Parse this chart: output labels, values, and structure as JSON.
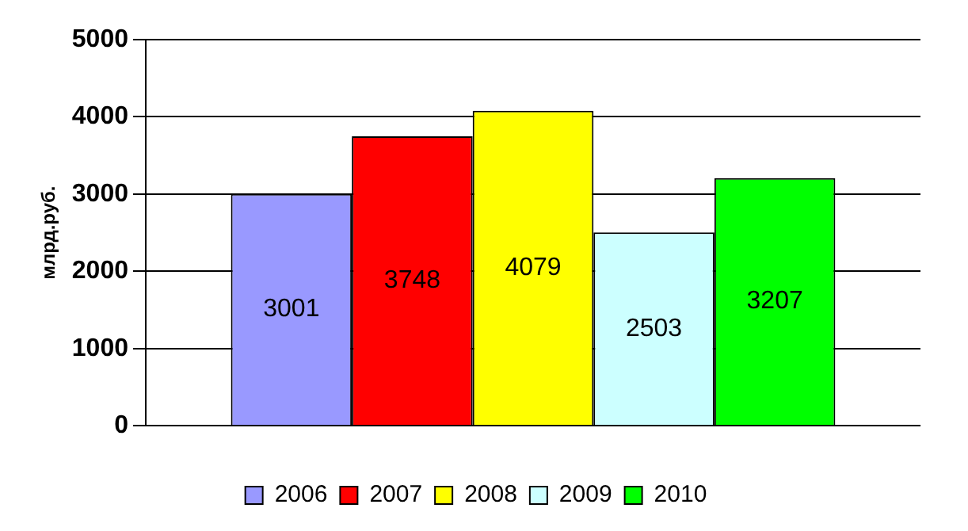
{
  "chart_data": {
    "type": "bar",
    "ylabel": "млрд.руб.",
    "categories": [
      null
    ],
    "series": [
      {
        "name": "2006",
        "color": "#9999ff",
        "values": [
          3001
        ]
      },
      {
        "name": "2007",
        "color": "#ff0000",
        "values": [
          3748
        ]
      },
      {
        "name": "2008",
        "color": "#ffff00",
        "values": [
          4079
        ]
      },
      {
        "name": "2009",
        "color": "#ccffff",
        "values": [
          2503
        ]
      },
      {
        "name": "2010",
        "color": "#00ff00",
        "values": [
          3207
        ]
      }
    ],
    "ylim": [
      0,
      5000
    ],
    "yticks": [
      0,
      1000,
      2000,
      3000,
      4000,
      5000
    ],
    "grid": "y",
    "legend": "bottom",
    "data_labels": true
  }
}
